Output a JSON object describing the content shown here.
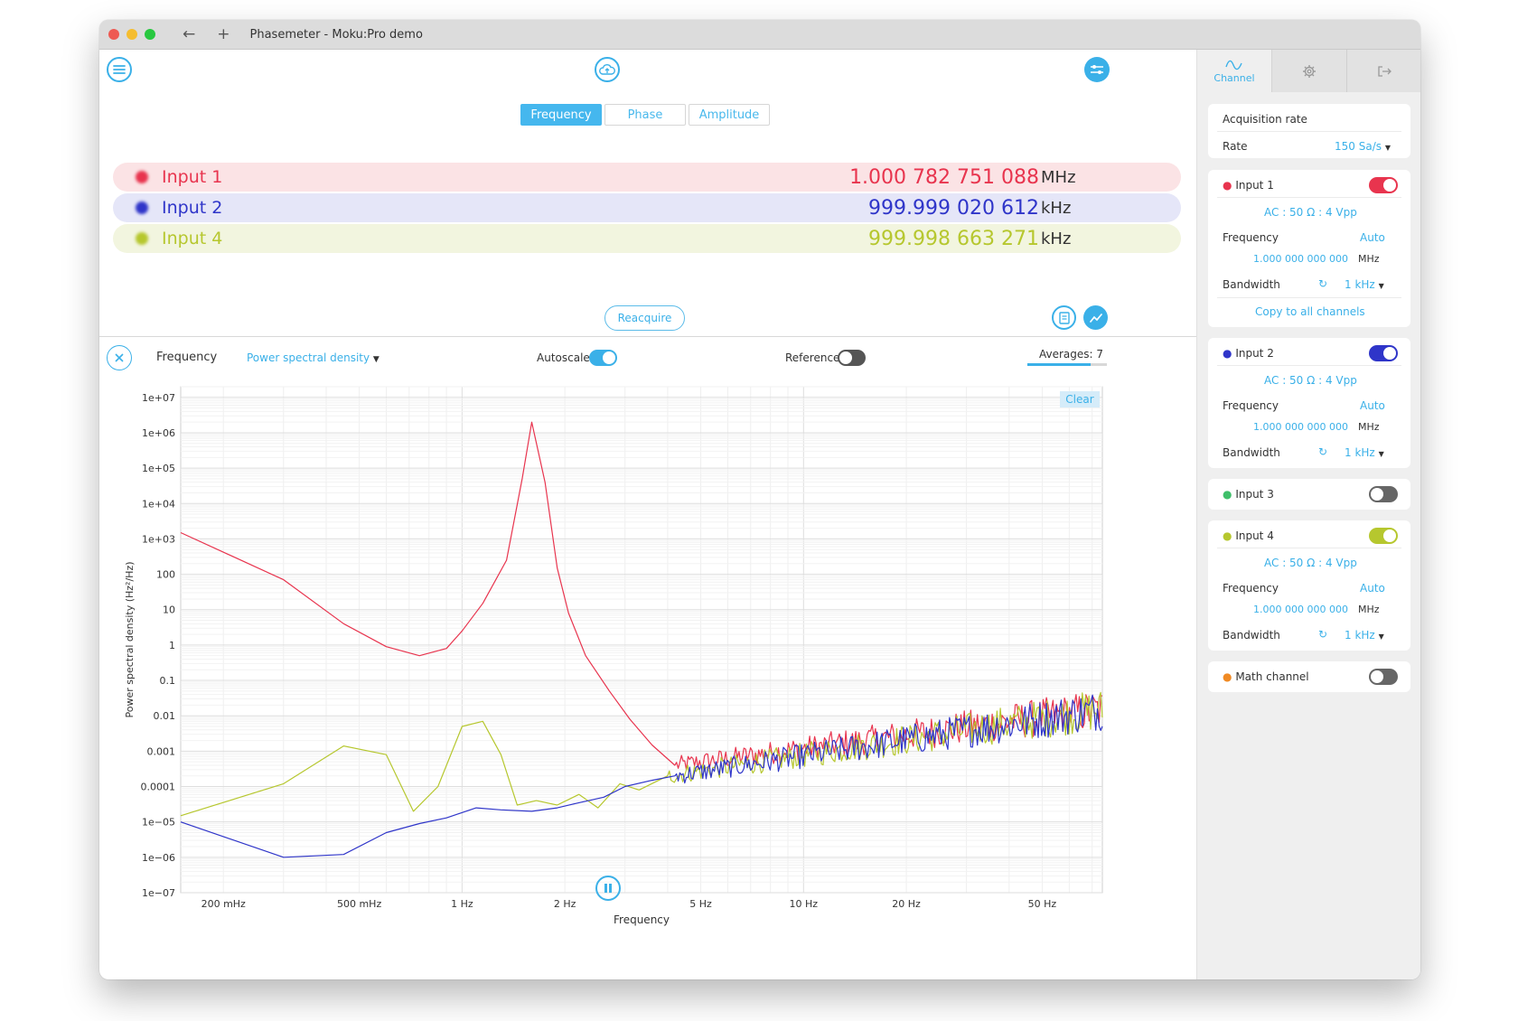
{
  "window": {
    "title": "Phasemeter - Moku:Pro demo",
    "traffic_lights": [
      "#ee5a52",
      "#f5bd2f",
      "#28c840"
    ]
  },
  "top": {
    "tabs": [
      {
        "label": "Frequency",
        "active": true
      },
      {
        "label": "Phase",
        "active": false
      },
      {
        "label": "Amplitude",
        "active": false
      }
    ],
    "readings": [
      {
        "name": "Input 1",
        "value": "1.000 782 751 088",
        "unit": "MHz",
        "color": "#e8344e",
        "bg": "#fbe3e5"
      },
      {
        "name": "Input 2",
        "value": "999.999 020 612",
        "unit": "kHz",
        "color": "#2f35c9",
        "bg": "#e5e6f8"
      },
      {
        "name": "Input 4",
        "value": "999.998 663 271",
        "unit": "kHz",
        "color": "#b6c72e",
        "bg": "#f2f5df"
      }
    ],
    "reacquire_label": "Reacquire"
  },
  "plot_controls": {
    "label": "Frequency",
    "mode": "Power spectral density",
    "autoscale_label": "Autoscale",
    "autoscale_on": true,
    "reference_label": "Reference",
    "reference_on": false,
    "averages": "Averages: 7",
    "averages_progress": 0.8,
    "clear_label": "Clear"
  },
  "chart_data": {
    "type": "line",
    "xlabel": "Frequency",
    "ylabel": "Power spectral density (Hz²/Hz)",
    "x_scale": "log",
    "y_scale": "log",
    "xlim": [
      0.15,
      75
    ],
    "ylim": [
      1e-07,
      20000000.0
    ],
    "x_ticks": [
      {
        "value": 0.2,
        "label": "200 mHz"
      },
      {
        "value": 0.5,
        "label": "500 mHz"
      },
      {
        "value": 1,
        "label": "1 Hz"
      },
      {
        "value": 2,
        "label": "2 Hz"
      },
      {
        "value": 5,
        "label": "5 Hz"
      },
      {
        "value": 10,
        "label": "10 Hz"
      },
      {
        "value": 20,
        "label": "20 Hz"
      },
      {
        "value": 50,
        "label": "50 Hz"
      }
    ],
    "y_ticks": [
      {
        "value": 10000000.0,
        "label": "1e+07"
      },
      {
        "value": 1000000.0,
        "label": "1e+06"
      },
      {
        "value": 100000.0,
        "label": "1e+05"
      },
      {
        "value": 10000.0,
        "label": "1e+04"
      },
      {
        "value": 1000.0,
        "label": "1e+03"
      },
      {
        "value": 100,
        "label": "100"
      },
      {
        "value": 10,
        "label": "10"
      },
      {
        "value": 1,
        "label": "1"
      },
      {
        "value": 0.1,
        "label": "0.1"
      },
      {
        "value": 0.01,
        "label": "0.01"
      },
      {
        "value": 0.001,
        "label": "0.001"
      },
      {
        "value": 0.0001,
        "label": "0.0001"
      },
      {
        "value": 1e-05,
        "label": "1e−05"
      },
      {
        "value": 1e-06,
        "label": "1e−06"
      },
      {
        "value": 1e-07,
        "label": "1e−07"
      }
    ],
    "series": [
      {
        "color": "#e8344e",
        "noise_from": 3,
        "noise_floor": true,
        "x": [
          0.15,
          0.3,
          0.45,
          0.6,
          0.75,
          0.9,
          1.0,
          1.15,
          1.35,
          1.5,
          1.6,
          1.75,
          1.9,
          2.05,
          2.3,
          2.7,
          3.1,
          3.6,
          4.2
        ],
        "y": [
          1500,
          70,
          4,
          0.9,
          0.5,
          0.8,
          2.5,
          15,
          250,
          50000,
          2000000,
          40000,
          150,
          8,
          0.5,
          0.05,
          0.008,
          0.0015,
          0.0004
        ]
      },
      {
        "color": "#b6c72e",
        "noise_from": 3,
        "noise_floor": true,
        "x": [
          0.15,
          0.3,
          0.45,
          0.6,
          0.72,
          0.85,
          1.0,
          1.15,
          1.3,
          1.45,
          1.65,
          1.9,
          2.2,
          2.5,
          2.9,
          3.3,
          4.0
        ],
        "y": [
          1.5e-05,
          0.00012,
          0.0014,
          0.0008,
          2e-05,
          0.0001,
          0.005,
          0.007,
          0.0008,
          3e-05,
          4e-05,
          3e-05,
          6e-05,
          2.5e-05,
          0.00012,
          8e-05,
          0.0002
        ]
      },
      {
        "color": "#2f35c9",
        "noise_from": 3,
        "noise_floor": true,
        "x": [
          0.15,
          0.3,
          0.45,
          0.6,
          0.75,
          0.9,
          1.1,
          1.3,
          1.6,
          1.9,
          2.2,
          2.6,
          3.0,
          3.6,
          4.2
        ],
        "y": [
          1e-05,
          1e-06,
          1.2e-06,
          5e-06,
          9e-06,
          1.3e-05,
          2.5e-05,
          2.2e-05,
          2e-05,
          2.5e-05,
          3.5e-05,
          5e-05,
          0.0001,
          0.00015,
          0.0002
        ]
      }
    ]
  },
  "sidebar": {
    "tabs": [
      {
        "label": "Channel",
        "icon": "waveform-icon",
        "active": true
      },
      {
        "label": "",
        "icon": "gear-icon",
        "active": false
      },
      {
        "label": "",
        "icon": "exit-icon",
        "active": false
      }
    ],
    "acquisition": {
      "title": "Acquisition rate",
      "rate_label": "Rate",
      "rate_value": "150 Sa/s"
    },
    "channels": [
      {
        "name": "Input 1",
        "color": "#e8344e",
        "enabled": true,
        "coupling": "AC : 50 Ω : 4 Vpp",
        "freq_label": "Frequency",
        "freq_mode": "Auto",
        "freq_value": "1.000 000 000 000",
        "freq_unit": "MHz",
        "bw_label": "Bandwidth",
        "bw_value": "1 kHz",
        "copy_label": "Copy to all channels"
      },
      {
        "name": "Input 2",
        "color": "#2f35c9",
        "enabled": true,
        "coupling": "AC : 50 Ω : 4 Vpp",
        "freq_label": "Frequency",
        "freq_mode": "Auto",
        "freq_value": "1.000 000 000 000",
        "freq_unit": "MHz",
        "bw_label": "Bandwidth",
        "bw_value": "1 kHz"
      },
      {
        "name": "Input 3",
        "color": "#3fbf6a",
        "enabled": false
      },
      {
        "name": "Input 4",
        "color": "#b6c72e",
        "enabled": true,
        "coupling": "AC : 50 Ω : 4 Vpp",
        "freq_label": "Frequency",
        "freq_mode": "Auto",
        "freq_value": "1.000 000 000 000",
        "freq_unit": "MHz",
        "bw_label": "Bandwidth",
        "bw_value": "1 kHz"
      },
      {
        "name": "Math channel",
        "color": "#f08a24",
        "enabled": false
      }
    ]
  }
}
